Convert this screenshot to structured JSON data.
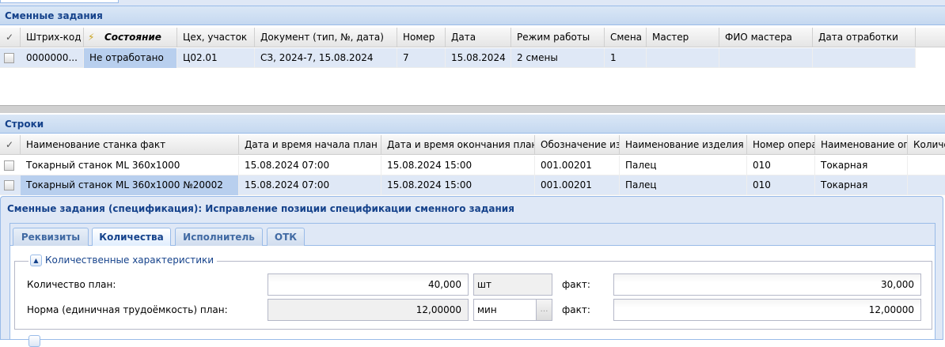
{
  "top_panel": {
    "title": "Сменные задания",
    "columns": [
      "Штрих-код",
      "Состояние",
      "Цех, участок",
      "Документ (тип, №, дата)",
      "Номер",
      "Дата",
      "Режим работы",
      "Смена",
      "Мастер",
      "ФИО мастера",
      "Дата отработки"
    ],
    "rows": [
      [
        "0000000...",
        "Не отработано",
        "Ц02.01",
        "СЗ, 2024-7, 15.08.2024",
        "7",
        "15.08.2024",
        "2 смены",
        "1",
        "",
        "",
        ""
      ]
    ]
  },
  "bottom_panel": {
    "title": "Строки",
    "columns": [
      "Наименование станка факт",
      "Дата и время начала план",
      "Дата и время окончания план...",
      "Обозначение изд",
      "Наименование изделия",
      "Номер опера",
      "Наименование опе",
      "Количе"
    ],
    "rows": [
      [
        "Токарный станок ML 360x1000",
        "15.08.2024 07:00",
        "15.08.2024 15:00",
        "001.00201",
        "Палец",
        "010",
        "Токарная",
        ""
      ],
      [
        "Токарный станок ML 360x1000 №20002",
        "15.08.2024 07:00",
        "15.08.2024 15:00",
        "001.00201",
        "Палец",
        "010",
        "Токарная",
        ""
      ]
    ]
  },
  "dialog": {
    "title": "Сменные задания (спецификация): Исправление позиции спецификации сменного задания",
    "tabs": [
      "Реквизиты",
      "Количества",
      "Исполнитель",
      "ОТК"
    ],
    "active_tab": "Количества",
    "section": "Количественные характеристики",
    "fields": [
      {
        "label": "Количество план:",
        "plan": "40,000",
        "unit": "шт",
        "fact_label": "факт:",
        "fact": "30,000"
      },
      {
        "label": "Норма (единичная трудоёмкость) план:",
        "plan": "12,00000",
        "unit": "мин",
        "fact_label": "факт:",
        "fact": "12,00000"
      }
    ]
  }
}
